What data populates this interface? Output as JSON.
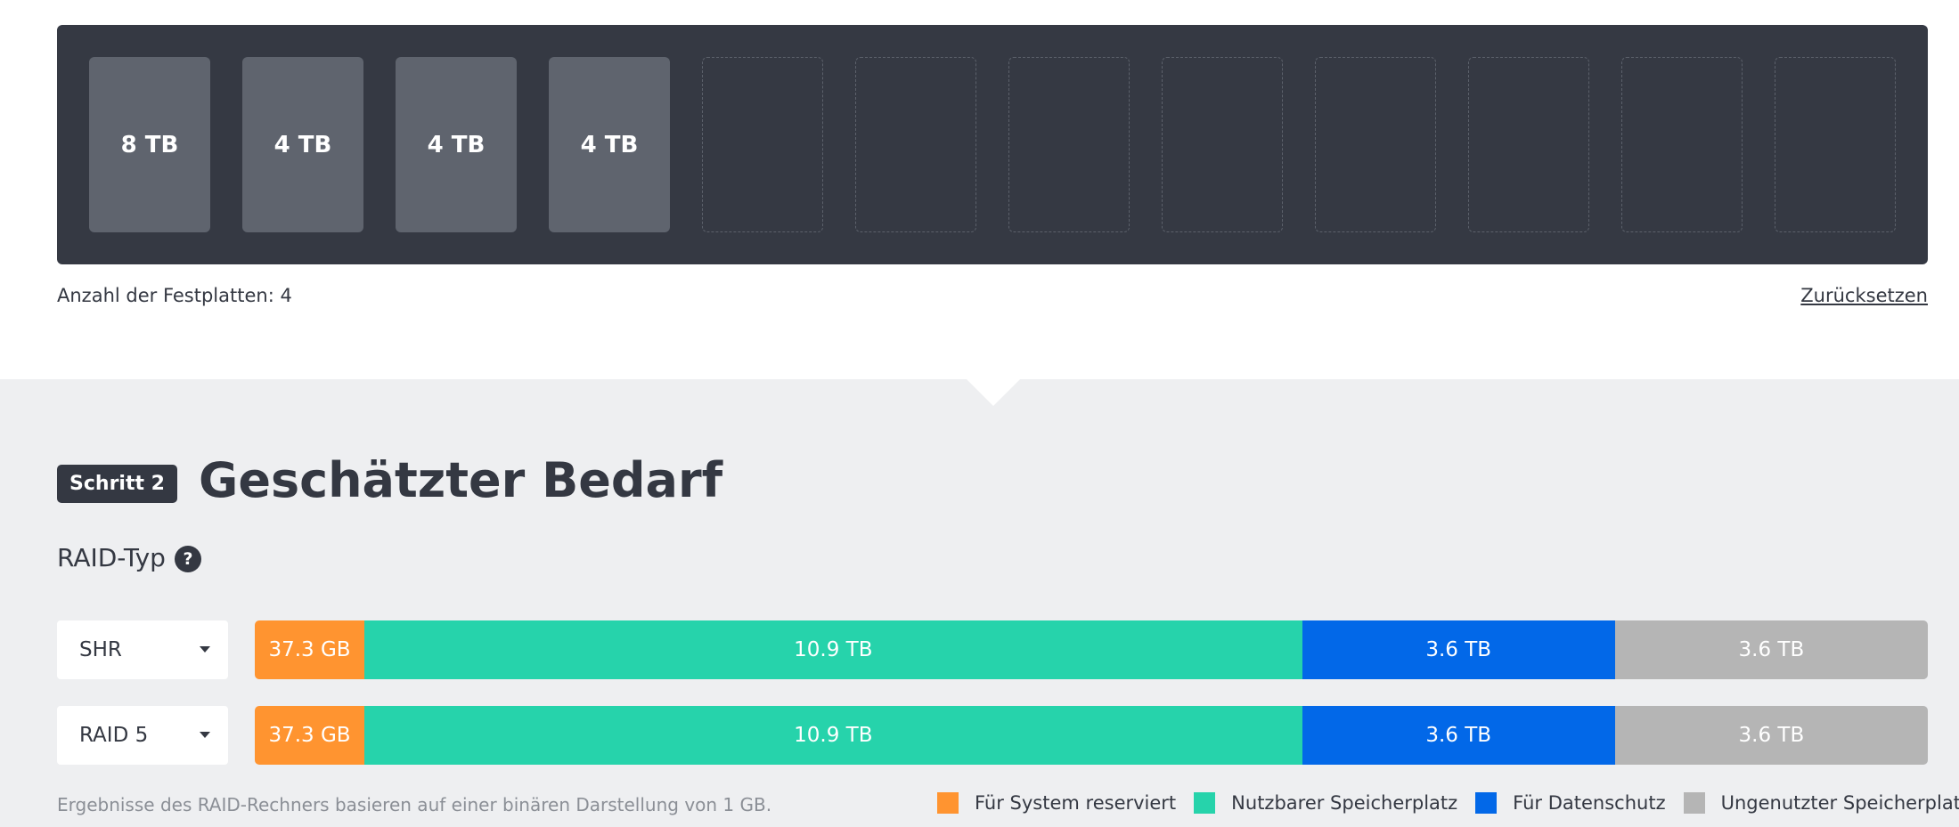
{
  "drive_bay": {
    "slots": [
      {
        "label": "8 TB",
        "filled": true
      },
      {
        "label": "4 TB",
        "filled": true
      },
      {
        "label": "4 TB",
        "filled": true
      },
      {
        "label": "4 TB",
        "filled": true
      },
      {
        "label": "",
        "filled": false
      },
      {
        "label": "",
        "filled": false
      },
      {
        "label": "",
        "filled": false
      },
      {
        "label": "",
        "filled": false
      },
      {
        "label": "",
        "filled": false
      },
      {
        "label": "",
        "filled": false
      },
      {
        "label": "",
        "filled": false
      },
      {
        "label": "",
        "filled": false
      }
    ]
  },
  "drive_count_text": "Anzahl der Festplatten: 4",
  "reset_label": "Zurücksetzen",
  "step": {
    "badge": "Schritt 2",
    "title": "Geschätzter Bedarf"
  },
  "raid_type_label": "RAID-Typ",
  "help_icon_glyph": "?",
  "raid_rows": [
    {
      "selected": "SHR",
      "segments": [
        {
          "label": "37.3 GB",
          "share": 0.0655,
          "color": "#ff9430"
        },
        {
          "label": "10.9 TB",
          "share": 0.5605,
          "color": "#26d3ab"
        },
        {
          "label": "3.6 TB",
          "share": 0.187,
          "color": "#0268e8"
        },
        {
          "label": "3.6 TB",
          "share": 0.187,
          "color": "#b5b5b5"
        }
      ]
    },
    {
      "selected": "RAID 5",
      "segments": [
        {
          "label": "37.3 GB",
          "share": 0.0655,
          "color": "#ff9430"
        },
        {
          "label": "10.9 TB",
          "share": 0.5605,
          "color": "#26d3ab"
        },
        {
          "label": "3.6 TB",
          "share": 0.187,
          "color": "#0268e8"
        },
        {
          "label": "3.6 TB",
          "share": 0.187,
          "color": "#b5b5b5"
        }
      ]
    }
  ],
  "footnote": "Ergebnisse des RAID-Rechners basieren auf einer binären Darstellung von 1 GB.",
  "legend": [
    {
      "label": "Für System reserviert",
      "color": "#ff9430"
    },
    {
      "label": "Nutzbarer Speicherplatz",
      "color": "#26d3ab"
    },
    {
      "label": "Für Datenschutz",
      "color": "#0268e8"
    },
    {
      "label": "Ungenutzter Speicherplatz:",
      "color": "#b5b5b5"
    }
  ]
}
